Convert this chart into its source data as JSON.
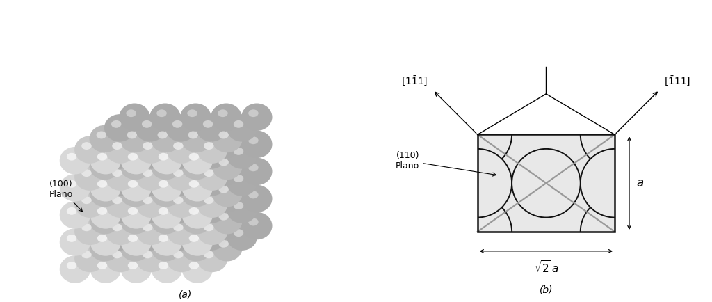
{
  "fig_width": 10.24,
  "fig_height": 4.34,
  "bg_color": "#ffffff",
  "panel_a_label": "(a)",
  "panel_b_label": "(b)",
  "label_100_text": "(100)\nPlano",
  "label_110_text": "(110)\nPlano",
  "rect_fill": "#e8e8e8",
  "rect_edge": "#111111",
  "circle_edge": "#111111",
  "diag_line_color": "#999999",
  "annotation_fontsize": 9,
  "label_fontsize": 10,
  "dir_fontsize": 10,
  "sphere_base_color": "#d8d8d8",
  "sphere_highlight_color": "#f2f2f2",
  "sphere_edge_color": "#cccccc"
}
